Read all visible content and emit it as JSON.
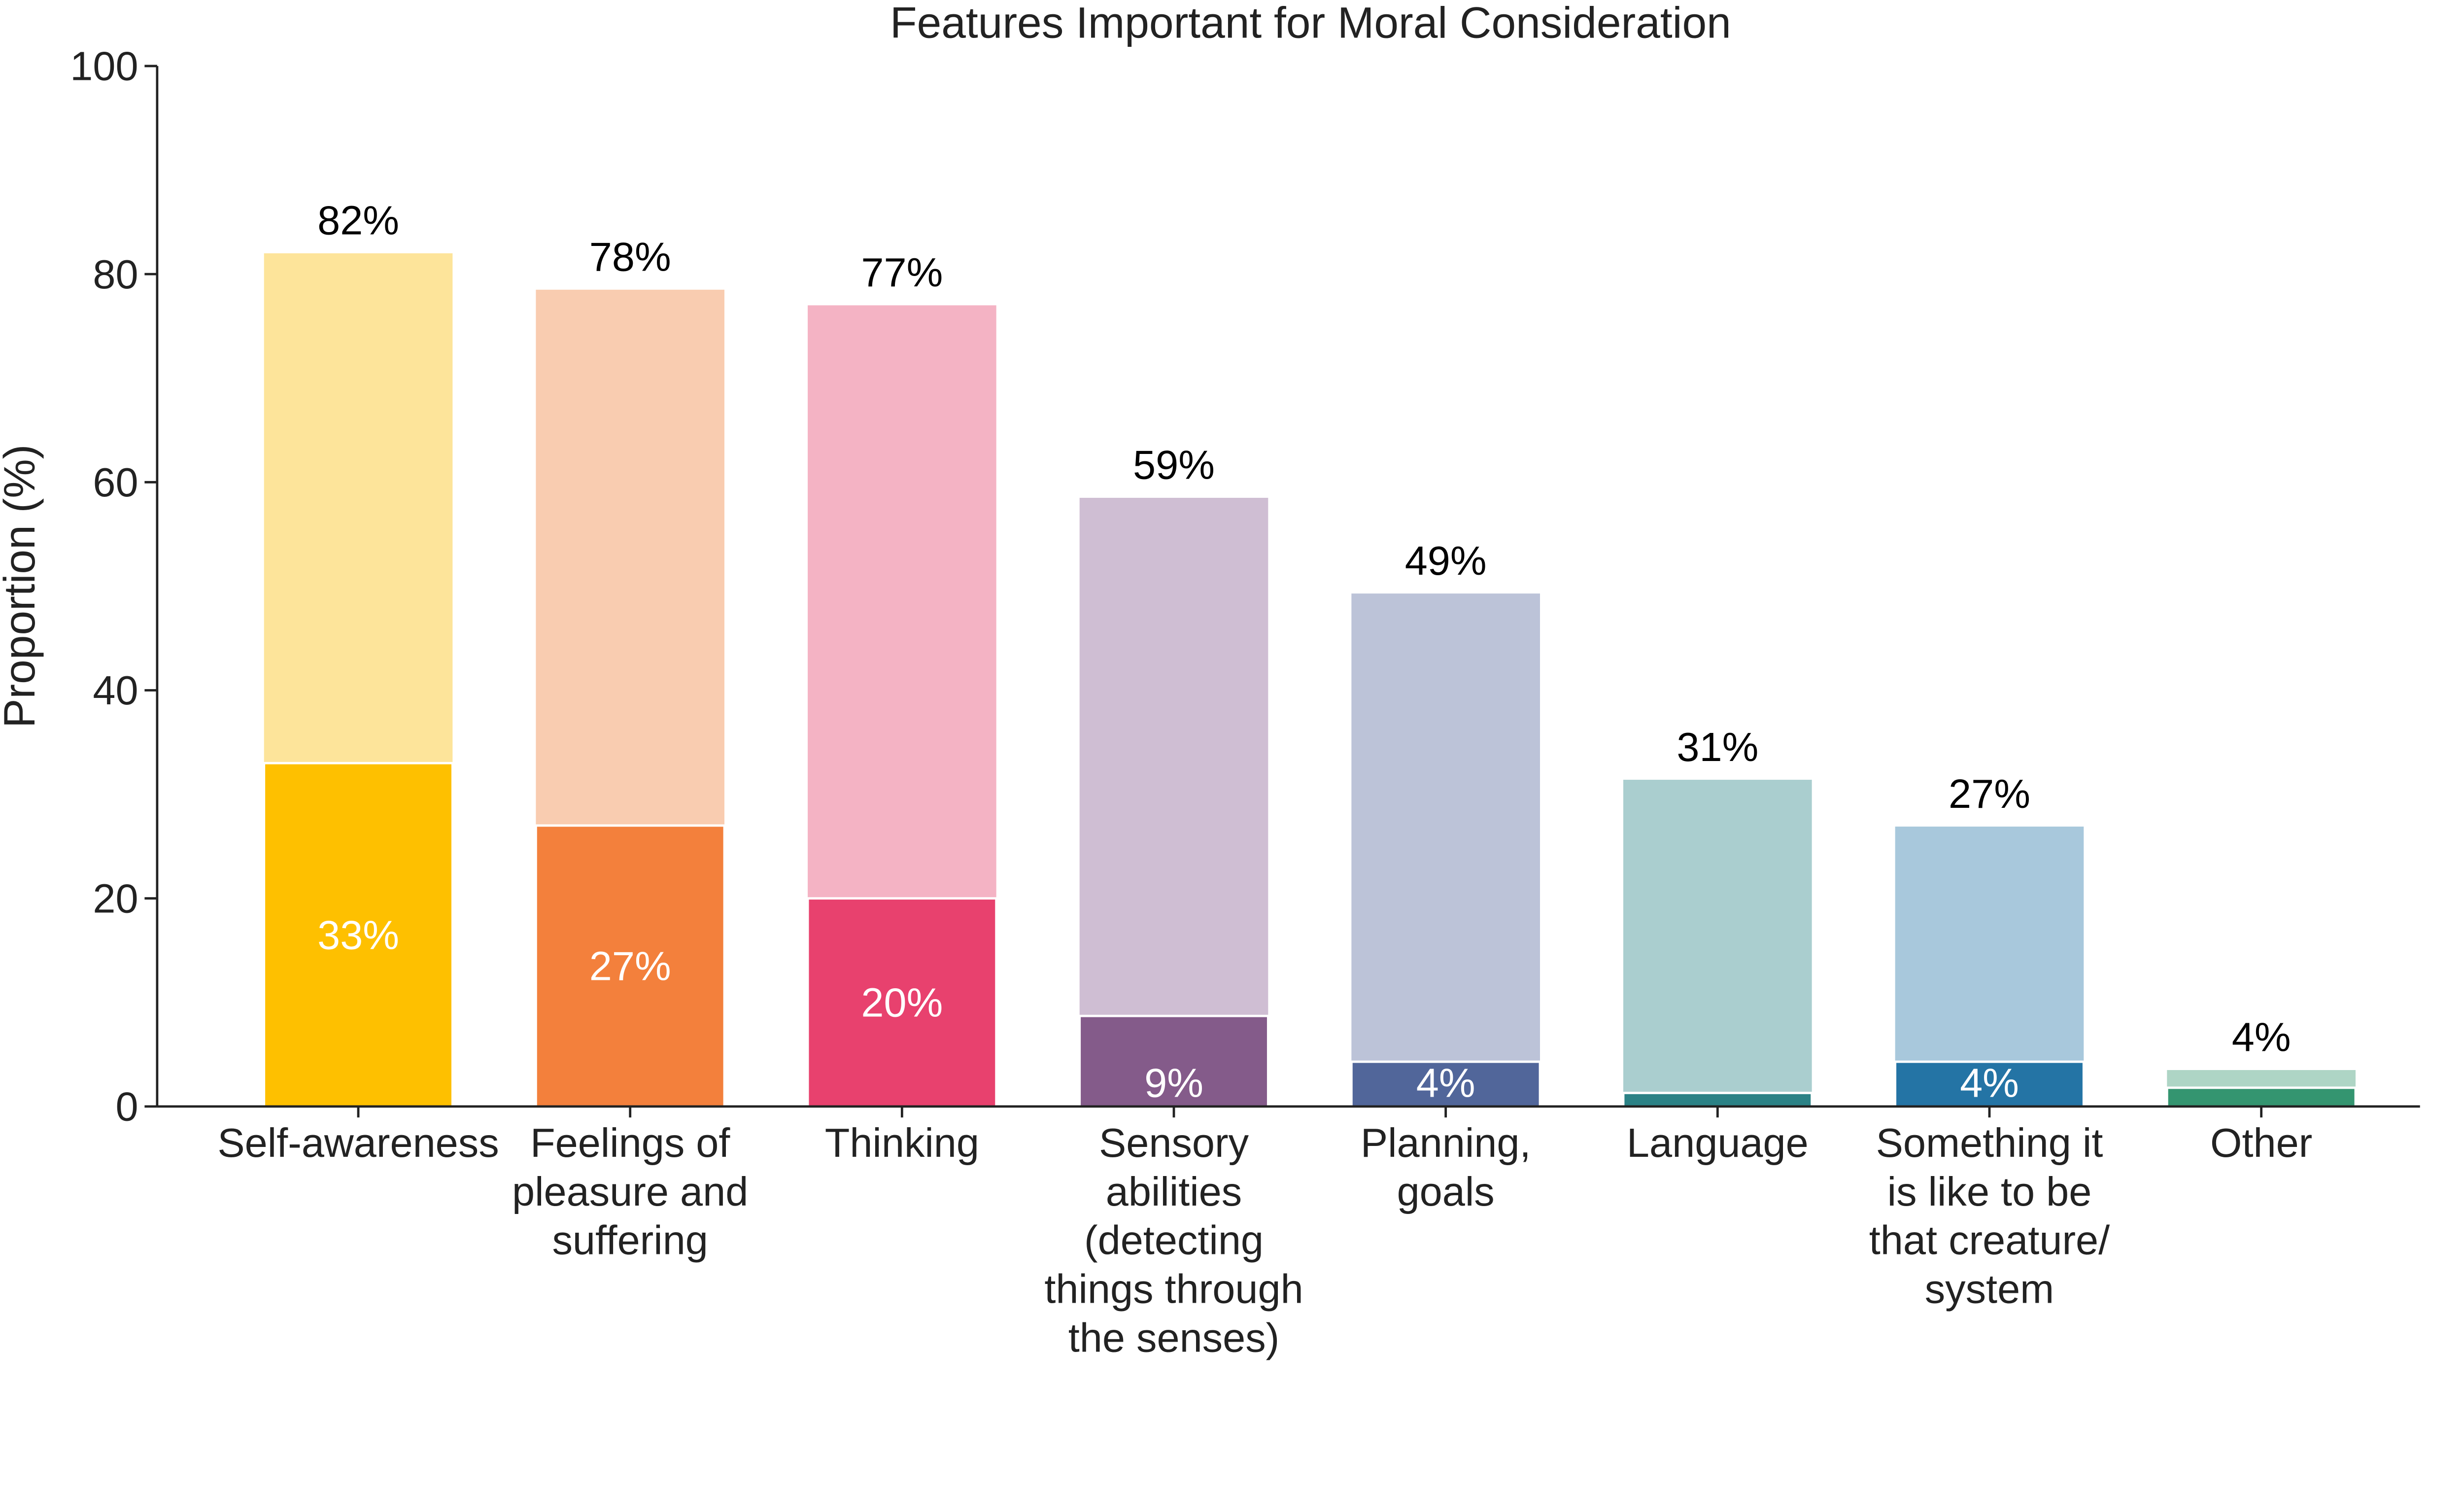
{
  "chart_data": {
    "type": "bar",
    "stacked_overlay": true,
    "title": "Features Important for Moral Consideration",
    "xlabel": "",
    "ylabel": "Proportion (%)",
    "ylim": [
      0,
      100
    ],
    "yticks": [
      "0",
      "20",
      "40",
      "60",
      "80",
      "100"
    ],
    "grid": false,
    "categories": [
      [
        "Self-awareness"
      ],
      [
        "Feelings of",
        "pleasure and",
        "suffering"
      ],
      [
        "Thinking"
      ],
      [
        "Sensory",
        "abilities",
        "(detecting",
        "things through",
        "the senses)"
      ],
      [
        "Planning,",
        "goals"
      ],
      [
        "Language"
      ],
      [
        "Something it",
        "is like to be",
        "that creature/",
        "system"
      ],
      [
        "Other"
      ]
    ],
    "series": [
      {
        "values": [
          82,
          78.5,
          77,
          58.5,
          49.3,
          31.4,
          26.9,
          3.5
        ],
        "labels": [
          "82%",
          "78%",
          "77%",
          "59%",
          "49%",
          "31%",
          "27%",
          "4%"
        ]
      },
      {
        "values": [
          33,
          27,
          20,
          8.7,
          4.3,
          1.3,
          4.3,
          1.8
        ],
        "labels": [
          "33%",
          "27%",
          "20%",
          "9%",
          "4%",
          "",
          "4%",
          ""
        ]
      }
    ],
    "colors_light": [
      "#FDE49A",
      "#F9CCB0",
      "#F4B3C4",
      "#CFBED3",
      "#BCC3D8",
      "#AACECF",
      "#A8C8DC",
      "#AED5C5"
    ],
    "colors_dark": [
      "#FEC000",
      "#F3803C",
      "#E8416E",
      "#845B8A",
      "#51669A",
      "#2B8286",
      "#2474A5",
      "#349570"
    ]
  }
}
